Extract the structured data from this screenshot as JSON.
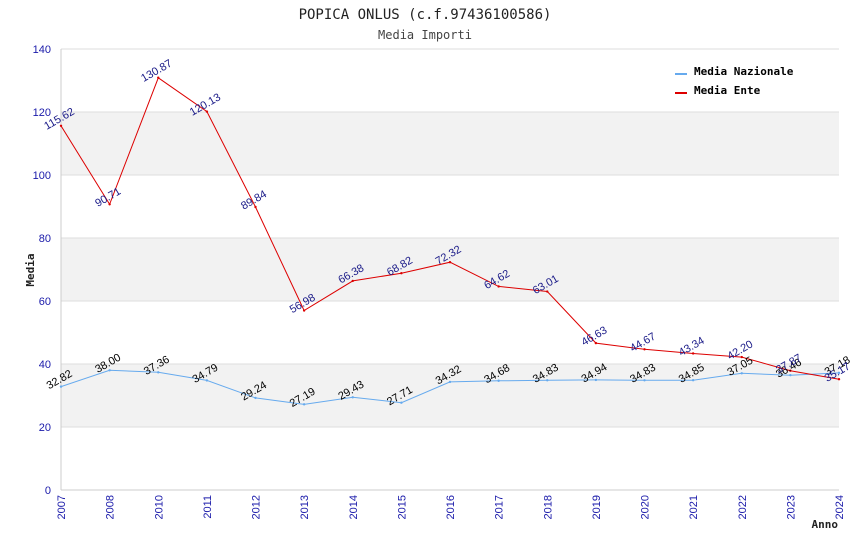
{
  "chart_data": {
    "type": "line",
    "title": "POPICA ONLUS (c.f.97436100586)",
    "subtitle": "Media Importi",
    "xlabel": "Anno",
    "ylabel": "Media",
    "ylim": [
      0,
      140
    ],
    "yticks": [
      "0",
      "20",
      "40",
      "60",
      "80",
      "100",
      "120",
      "140"
    ],
    "categories": [
      "2007",
      "2008",
      "2010",
      "2011",
      "2012",
      "2013",
      "2014",
      "2015",
      "2016",
      "2017",
      "2018",
      "2019",
      "2020",
      "2021",
      "2022",
      "2023",
      "2024"
    ],
    "legend_position": "top-right",
    "series": [
      {
        "name": "Media Nazionale",
        "color": "#66aaee",
        "label_color": "#000000",
        "values": [
          32.82,
          38.0,
          37.36,
          34.79,
          29.24,
          27.19,
          29.43,
          27.71,
          34.32,
          34.68,
          34.83,
          34.94,
          34.83,
          34.85,
          37.05,
          36.46,
          37.18
        ],
        "labels": [
          "32.82",
          "38.00",
          "37.36",
          "34.79",
          "29.24",
          "27.19",
          "29.43",
          "27.71",
          "34.32",
          "34.68",
          "34.83",
          "34.94",
          "34.83",
          "34.85",
          "37.05",
          "36.46",
          "37.18"
        ]
      },
      {
        "name": "Media Ente",
        "color": "#dd0000",
        "label_color": "#1a1a88",
        "values": [
          115.62,
          90.71,
          130.87,
          120.13,
          89.84,
          56.98,
          66.38,
          68.82,
          72.32,
          64.62,
          63.01,
          46.63,
          44.67,
          43.34,
          42.2,
          37.87,
          35.17
        ],
        "labels": [
          "115.62",
          "90.71",
          "130.87",
          "120.13",
          "89.84",
          "56.98",
          "66.38",
          "68.82",
          "72.32",
          "64.62",
          "63.01",
          "46.63",
          "44.67",
          "43.34",
          "42.20",
          "37.87",
          "35.17"
        ]
      }
    ]
  }
}
